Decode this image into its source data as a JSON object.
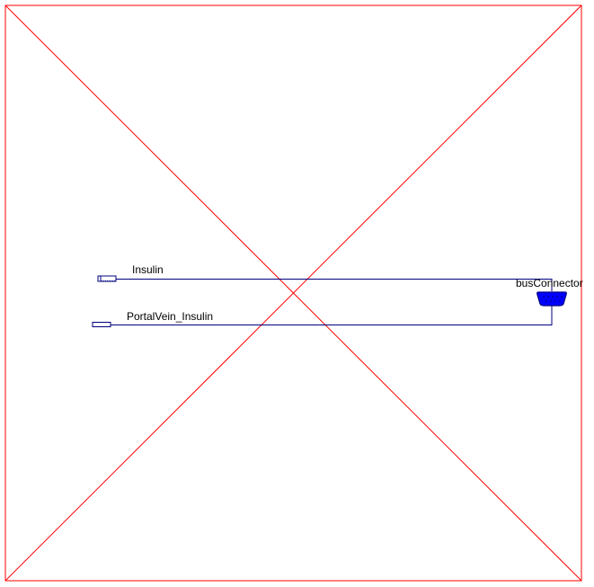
{
  "diagram": {
    "frame_color": "#ff0000",
    "wire_color": "#000080",
    "connector_fill": "#0000ff",
    "connector_stroke": "#000080",
    "ports": [
      {
        "label": "Insulin"
      },
      {
        "label": "PortalVein_Insulin"
      }
    ],
    "bus_connector": {
      "label": "busConnector"
    }
  }
}
